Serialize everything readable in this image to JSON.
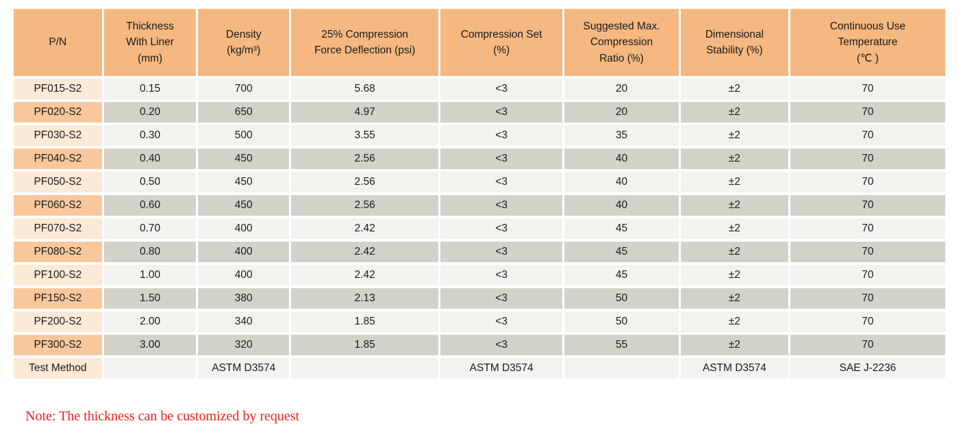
{
  "table": {
    "headers": [
      "P/N",
      "Thickness\nWith Liner\n(mm)",
      "Density\n(kg/m³)",
      "25% Compression\nForce Deflection (psi)",
      "Compression Set\n(%)",
      "Suggested Max.\nCompression\nRatio (%)",
      "Dimensional\nStability (%)",
      "Continuous Use\nTemperature\n(℃ )"
    ],
    "rows": [
      {
        "pn": "PF015-S2",
        "values": [
          "0.15",
          "700",
          "5.68",
          "<3",
          "20",
          "±2",
          "70"
        ]
      },
      {
        "pn": "PF020-S2",
        "values": [
          "0.20",
          "650",
          "4.97",
          "<3",
          "20",
          "±2",
          "70"
        ]
      },
      {
        "pn": "PF030-S2",
        "values": [
          "0.30",
          "500",
          "3.55",
          "<3",
          "35",
          "±2",
          "70"
        ]
      },
      {
        "pn": "PF040-S2",
        "values": [
          "0.40",
          "450",
          "2.56",
          "<3",
          "40",
          "±2",
          "70"
        ]
      },
      {
        "pn": "PF050-S2",
        "values": [
          "0.50",
          "450",
          "2.56",
          "<3",
          "40",
          "±2",
          "70"
        ]
      },
      {
        "pn": "PF060-S2",
        "values": [
          "0.60",
          "450",
          "2.56",
          "<3",
          "40",
          "±2",
          "70"
        ]
      },
      {
        "pn": "PF070-S2",
        "values": [
          "0.70",
          "400",
          "2.42",
          "<3",
          "45",
          "±2",
          "70"
        ]
      },
      {
        "pn": "PF080-S2",
        "values": [
          "0.80",
          "400",
          "2.42",
          "<3",
          "45",
          "±2",
          "70"
        ]
      },
      {
        "pn": "PF100-S2",
        "values": [
          "1.00",
          "400",
          "2.42",
          "<3",
          "45",
          "±2",
          "70"
        ]
      },
      {
        "pn": "PF150-S2",
        "values": [
          "1.50",
          "380",
          "2.13",
          "<3",
          "50",
          "±2",
          "70"
        ]
      },
      {
        "pn": "PF200-S2",
        "values": [
          "2.00",
          "340",
          "1.85",
          "<3",
          "50",
          "±2",
          "70"
        ]
      },
      {
        "pn": "PF300-S2",
        "values": [
          "3.00",
          "320",
          "1.85",
          "<3",
          "55",
          "±2",
          "70"
        ]
      }
    ],
    "footer": {
      "label": "Test Method",
      "values": [
        "",
        "ASTM D3574",
        "",
        "ASTM D3574",
        "",
        "ASTM D3574",
        "SAE J-2236"
      ]
    }
  },
  "note": "Note: The thickness can be customized by request",
  "colors": {
    "header_bg": "#F5B880",
    "pn_light": "#FCE9D6",
    "pn_dark": "#F8C89C",
    "row_light": "#F2F2EE",
    "row_dark": "#D2D2CA",
    "note_red": "#EE1C1C"
  }
}
